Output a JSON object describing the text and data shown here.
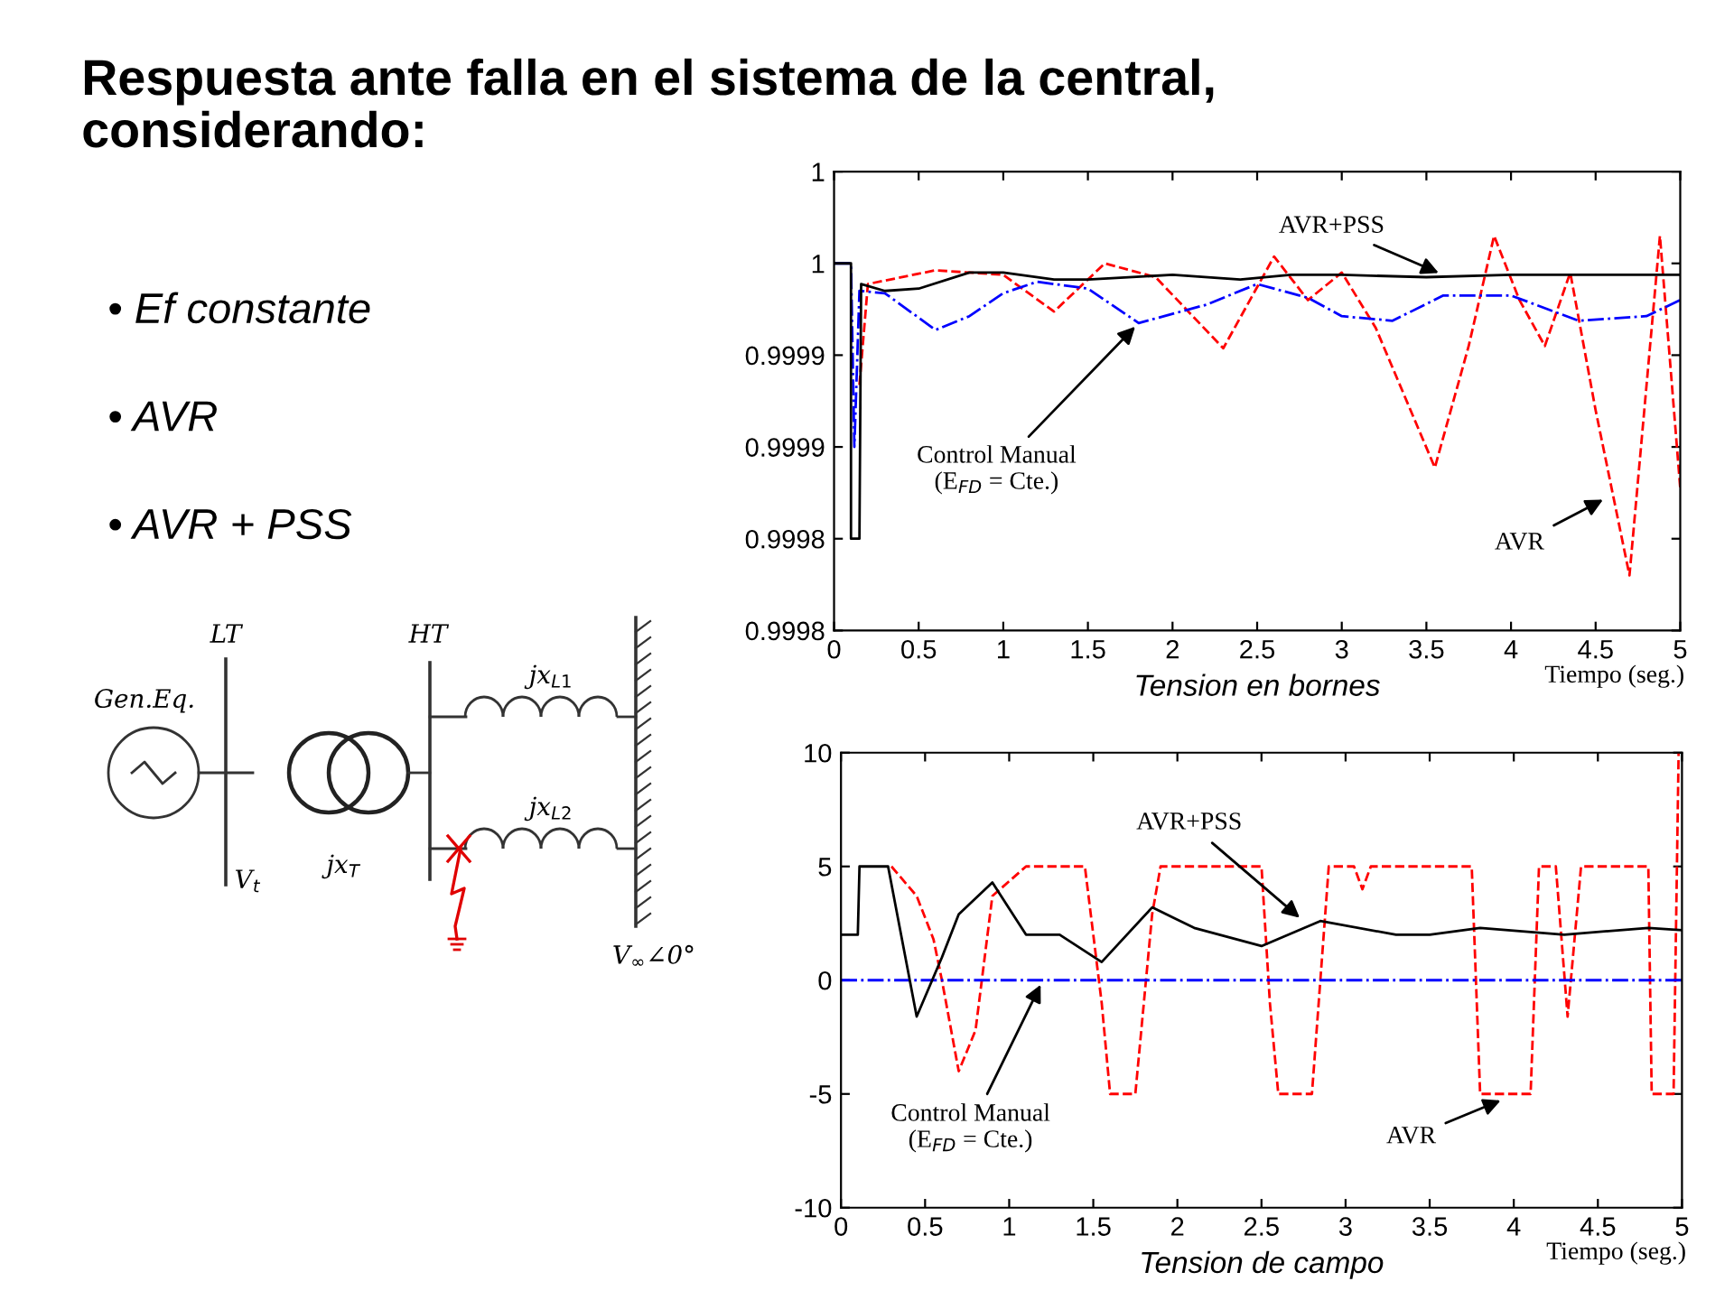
{
  "chart_data": [
    {
      "type": "other",
      "title": "Respuesta ante falla en el sistema de la central, considerando:",
      "annotations": [
        "• Ef constante",
        "• AVR",
        "• AVR + PSS",
        "LT",
        "HT",
        "Gen.Eq.",
        "jx$_{T}$",
        "V$_{t}$",
        "jx$_{L1}$",
        "jx$_{L2}$",
        "V$_{∞}$∠0°"
      ]
    },
    {
      "type": "line",
      "xlabel": "Tension en bornes",
      "xlim": [
        0,
        5
      ],
      "xticks": [
        0,
        0.5,
        1,
        1.5,
        2,
        2.5,
        3,
        3.5,
        4,
        4.5,
        5
      ],
      "ylim": [
        0.9998,
        1.0
      ],
      "yticks": [
        {
          "value": 0.9998,
          "label": "0.9998"
        },
        {
          "value": 0.99984,
          "label": "0.9998"
        },
        {
          "value": 0.99988,
          "label": "0.9999"
        },
        {
          "value": 0.99992,
          "label": "0.9999"
        },
        {
          "value": 0.99996,
          "label": "1"
        },
        {
          "value": 1.0,
          "label": "1"
        }
      ],
      "grid": false,
      "series": [
        {
          "color": "#ff0000",
          "line_style": "dashed",
          "x": [
            0.15,
            0.2,
            0.6,
            1.0,
            1.3,
            1.6,
            1.9,
            2.3,
            2.6,
            2.8,
            3.0,
            3.2,
            3.55,
            3.75,
            3.9,
            4.05,
            4.2,
            4.35,
            4.5,
            4.7,
            4.88,
            5.0
          ],
          "values": [
            0.999907,
            0.999951,
            0.999957,
            0.999955,
            0.999939,
            0.99996,
            0.999954,
            0.999923,
            0.999963,
            0.999944,
            0.999956,
            0.999932,
            0.999871,
            0.999924,
            0.999972,
            0.999944,
            0.999924,
            0.999956,
            0.999896,
            0.999824,
            0.999972,
            0.999862
          ]
        },
        {
          "color": "#0000ff",
          "line_style": "dashdot",
          "x": [
            0,
            0.1,
            0.12,
            0.15,
            0.3,
            0.6,
            0.8,
            1.0,
            1.2,
            1.5,
            1.8,
            2.2,
            2.5,
            2.8,
            3.0,
            3.3,
            3.6,
            4.0,
            4.4,
            4.8,
            5.0
          ],
          "values": [
            0.99996,
            0.99996,
            0.99988,
            0.999948,
            0.999947,
            0.999931,
            0.999937,
            0.999947,
            0.999952,
            0.999949,
            0.999934,
            0.999942,
            0.999951,
            0.999945,
            0.999937,
            0.999935,
            0.999946,
            0.999946,
            0.999935,
            0.999937,
            0.999944
          ]
        },
        {
          "color": "#000000",
          "line_style": "solid",
          "x": [
            0,
            0.1,
            0.1,
            0.15,
            0.16,
            0.3,
            0.5,
            0.8,
            1.0,
            1.3,
            1.5,
            2.0,
            2.4,
            2.7,
            3.0,
            3.5,
            4.0,
            4.5,
            5.0
          ],
          "values": [
            0.99996,
            0.99996,
            0.99984,
            0.99984,
            0.999951,
            0.999948,
            0.999949,
            0.999956,
            0.999956,
            0.999953,
            0.999953,
            0.999955,
            0.999953,
            0.999955,
            0.999955,
            0.999954,
            0.999955,
            0.999955,
            0.999955
          ]
        }
      ],
      "annotations": [
        {
          "text": "AVR+PSS",
          "x": 3.6,
          "y": 0.999955
        },
        {
          "text": "Control Manual\n(E$_{FD}$ = Cte.)",
          "x": 1.8,
          "y": 0.999934
        },
        {
          "text": "AVR",
          "x": 4.57,
          "y": 0.999858
        },
        "Tiempo (seg.)"
      ]
    },
    {
      "type": "line",
      "xlabel": "Tension de campo",
      "xlim": [
        0,
        5
      ],
      "xticks": [
        0,
        0.5,
        1,
        1.5,
        2,
        2.5,
        3,
        3.5,
        4,
        4.5,
        5
      ],
      "ylim": [
        -10,
        10
      ],
      "yticks": [
        -10,
        -5,
        0,
        5,
        10
      ],
      "grid": false,
      "series": [
        {
          "color": "#ff0000",
          "line_style": "dashed",
          "x": [
            0.3,
            0.45,
            0.55,
            0.6,
            0.7,
            0.8,
            0.9,
            1.1,
            1.45,
            1.55,
            1.6,
            1.75,
            1.85,
            1.9,
            2.5,
            2.55,
            2.6,
            2.8,
            2.9,
            3.05,
            3.1,
            3.15,
            3.75,
            3.8,
            4.1,
            4.15,
            4.25,
            4.32,
            4.4,
            4.8,
            4.82,
            4.95,
            4.98
          ],
          "values": [
            5,
            3.7,
            1.8,
            0,
            -4.0,
            -2.2,
            3.7,
            5,
            5,
            -1,
            -5,
            -5,
            2.9,
            5,
            5,
            -1,
            -5,
            -5,
            5,
            5,
            4.0,
            5,
            5,
            -5,
            -5,
            5,
            5,
            -1.6,
            5,
            5,
            -5,
            -5,
            10
          ]
        },
        {
          "color": "#0000ff",
          "line_style": "dashdot",
          "x": [
            0,
            5
          ],
          "values": [
            0,
            0
          ]
        },
        {
          "color": "#000000",
          "line_style": "solid",
          "x": [
            0,
            0.1,
            0.11,
            0.28,
            0.45,
            0.6,
            0.7,
            0.9,
            1.1,
            1.3,
            1.55,
            1.85,
            2.1,
            2.5,
            2.85,
            3.3,
            3.5,
            3.8,
            4.3,
            4.8,
            5.0
          ],
          "values": [
            2,
            2,
            5,
            5,
            -1.6,
            1.0,
            2.9,
            4.3,
            2.0,
            2.0,
            0.8,
            3.2,
            2.3,
            1.5,
            2.6,
            2.0,
            2.0,
            2.3,
            2.0,
            2.3,
            2.2
          ]
        }
      ],
      "annotations": [
        {
          "text": "AVR+PSS",
          "x": 2.75,
          "y": 2.6
        },
        {
          "text": "Control Manual\n(E$_{FD}$ = Cte.)",
          "x": 1.2,
          "y": 0
        },
        {
          "text": "AVR",
          "x": 3.95,
          "y": -5.2
        },
        "Tiempo (seg.)"
      ]
    }
  ]
}
